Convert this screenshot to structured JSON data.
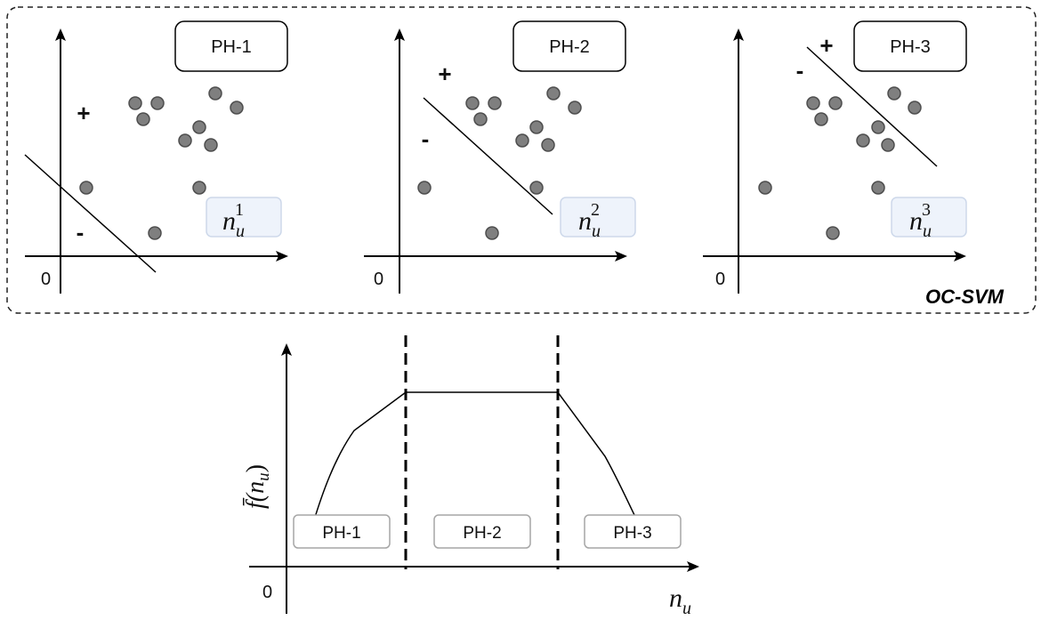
{
  "group_label": "OC-SVM",
  "colors": {
    "point_fill": "#7f7f7f",
    "point_stroke": "#4d4d4d",
    "line": "#000000",
    "label_box_fill": "#eef3fb",
    "label_box_stroke": "#cdd8ea",
    "phase_box_stroke": "#a6a6a6"
  },
  "panels": [
    {
      "id": "panel-1",
      "phase": "PH-1",
      "origin": "0",
      "plus": "+",
      "minus": "-",
      "label_base": "n",
      "label_sub": "u",
      "label_sup": "1"
    },
    {
      "id": "panel-2",
      "phase": "PH-2",
      "origin": "0",
      "plus": "+",
      "minus": "-",
      "label_base": "n",
      "label_sub": "u",
      "label_sup": "2"
    },
    {
      "id": "panel-3",
      "phase": "PH-3",
      "origin": "0",
      "plus": "+",
      "minus": "-",
      "label_base": "n",
      "label_sub": "u",
      "label_sup": "3"
    }
  ],
  "bottom": {
    "origin": "0",
    "y_label": "f̄(n",
    "y_label_sub": "u",
    "y_label_close": ")",
    "x_label_base": "n",
    "x_label_sub": "u",
    "phases": [
      "PH-1",
      "PH-2",
      "PH-3"
    ]
  }
}
